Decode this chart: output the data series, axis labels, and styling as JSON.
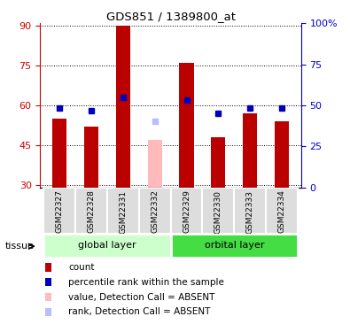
{
  "title": "GDS851 / 1389800_at",
  "samples": [
    "GSM22327",
    "GSM22328",
    "GSM22331",
    "GSM22332",
    "GSM22329",
    "GSM22330",
    "GSM22333",
    "GSM22334"
  ],
  "bar_values": [
    55,
    52,
    90,
    null,
    76,
    48,
    57,
    54
  ],
  "bar_absent_values": [
    null,
    null,
    null,
    47,
    null,
    null,
    null,
    null
  ],
  "rank_values": [
    59,
    58,
    63,
    null,
    62,
    57,
    59,
    59
  ],
  "rank_absent_values": [
    null,
    null,
    null,
    54,
    null,
    null,
    null,
    null
  ],
  "bar_color": "#bb0000",
  "bar_absent_color": "#ffbbbb",
  "rank_color": "#0000bb",
  "rank_absent_color": "#bbbbff",
  "ylim_left": [
    29,
    91
  ],
  "yticks_left": [
    30,
    45,
    60,
    75,
    90
  ],
  "ylim_right": [
    0,
    100
  ],
  "yticks_right": [
    0,
    25,
    50,
    75,
    100
  ],
  "ylabel_left_color": "#cc0000",
  "ylabel_right_color": "#0000cc",
  "groups": [
    {
      "label": "global layer",
      "start": 0,
      "end": 4,
      "color": "#ccffcc"
    },
    {
      "label": "orbital layer",
      "start": 4,
      "end": 8,
      "color": "#44dd44"
    }
  ],
  "tissue_label": "tissue",
  "bar_width": 0.45,
  "rank_marker_size": 5,
  "dotted_line_color": "#000000",
  "background_color": "#ffffff",
  "legend_items": [
    {
      "color": "#bb0000",
      "label": "count"
    },
    {
      "color": "#0000bb",
      "label": "percentile rank within the sample"
    },
    {
      "color": "#ffbbbb",
      "label": "value, Detection Call = ABSENT"
    },
    {
      "color": "#bbbbff",
      "label": "rank, Detection Call = ABSENT"
    }
  ]
}
